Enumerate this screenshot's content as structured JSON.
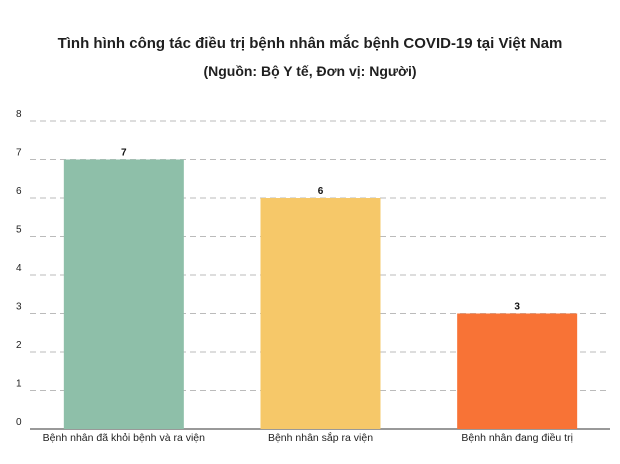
{
  "chart_data": {
    "type": "bar",
    "title": "Tình hình công tác điều trị bệnh nhân mắc bệnh COVID-19 tại Việt Nam",
    "subtitle": "(Nguồn: Bộ Y tế, Đơn vị: Người)",
    "categories": [
      "Bệnh nhân đã khỏi bệnh và ra viện",
      "Bệnh nhân sắp ra viện",
      "Bệnh nhân đang điều trị"
    ],
    "values": [
      7,
      6,
      3
    ],
    "colors": [
      "#8ebfa9",
      "#f6c869",
      "#f87336"
    ],
    "ylim": [
      0,
      8
    ],
    "yticks": [
      0,
      1,
      2,
      3,
      4,
      5,
      6,
      7,
      8
    ],
    "xlabel": "",
    "ylabel": "",
    "grid": "horizontal-dashed",
    "legend": "none"
  }
}
